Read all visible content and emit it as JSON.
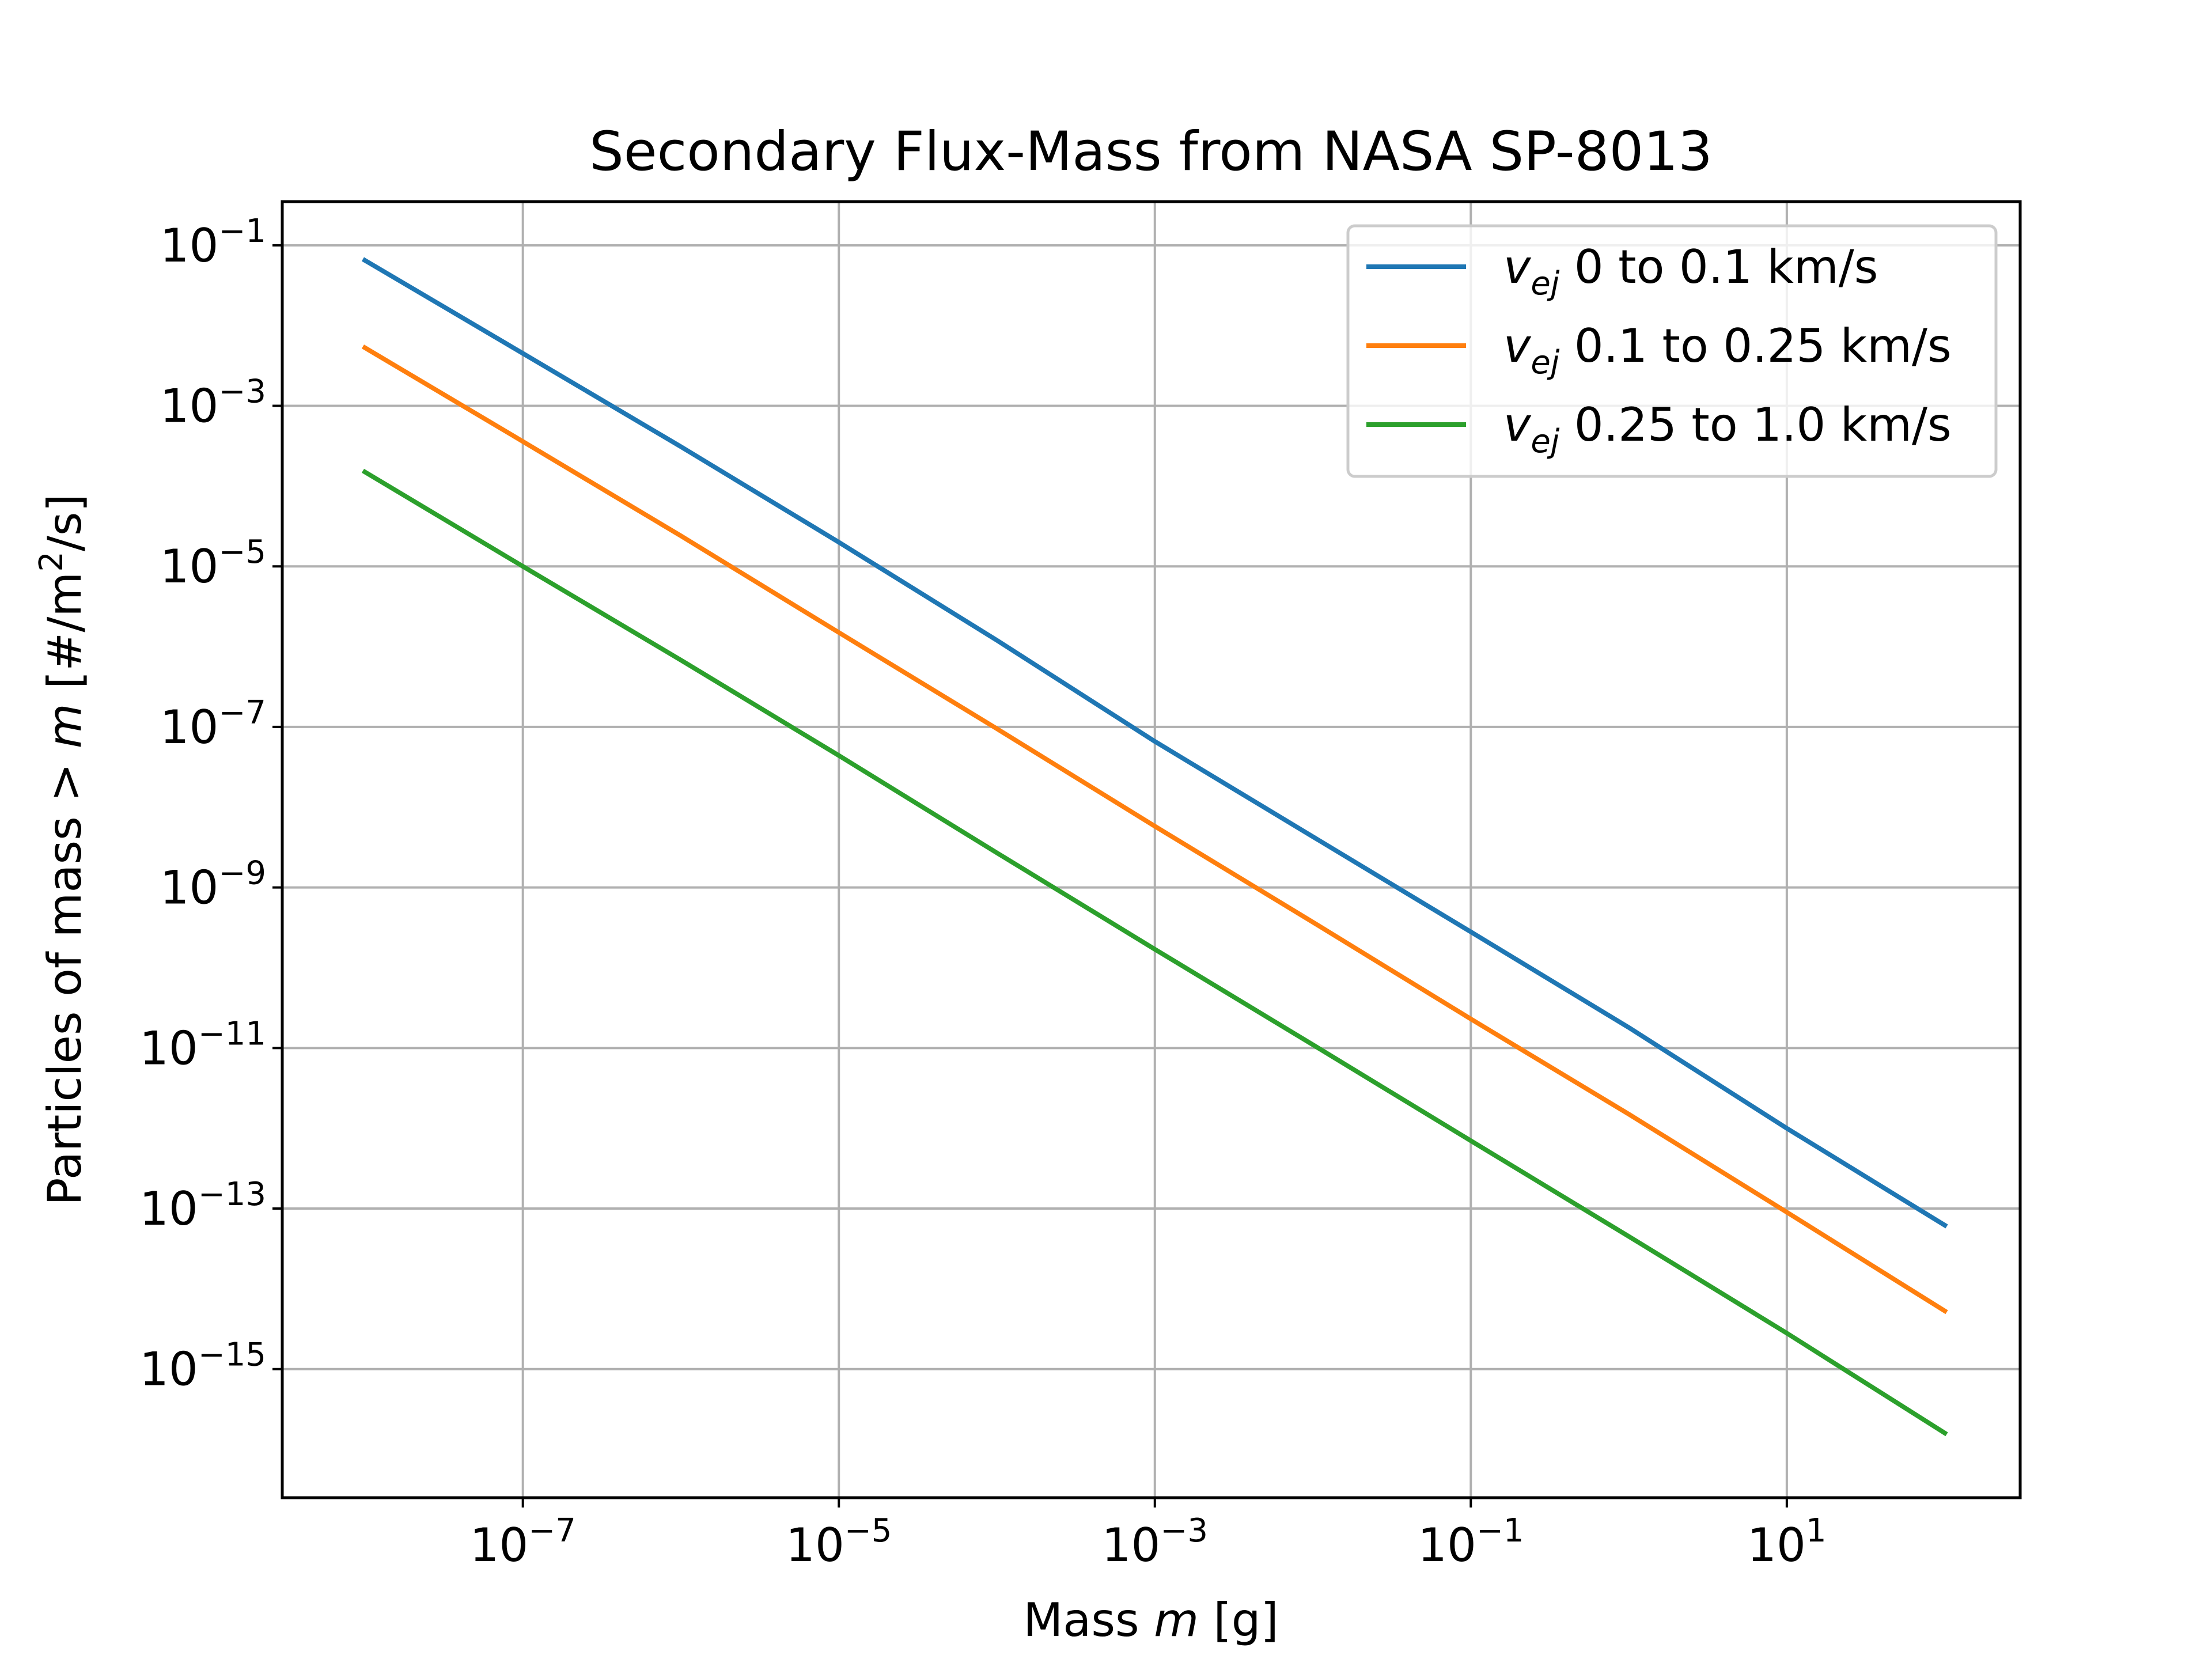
{
  "chart_data": {
    "type": "line",
    "title": "Secondary Flux-Mass from NASA SP-8013",
    "xlabel": {
      "prefix": "Mass ",
      "var": "m",
      "suffix": " [g]"
    },
    "ylabel": {
      "prefix": "Particles of mass > ",
      "var": "m",
      "suffix1": " [#/m",
      "sup": "2",
      "suffix2": "/s]"
    },
    "xscale": "log",
    "yscale": "log",
    "xlim": [
      3e-09,
      300
    ],
    "ylim": [
      2.5e-17,
      0.35
    ],
    "grid": true,
    "legend_position": "top-right",
    "x_ticks": [
      {
        "base": "10",
        "exp": "−7",
        "value": 1e-07
      },
      {
        "base": "10",
        "exp": "−5",
        "value": 1e-05
      },
      {
        "base": "10",
        "exp": "−3",
        "value": 0.001
      },
      {
        "base": "10",
        "exp": "−1",
        "value": 0.1
      },
      {
        "base": "10",
        "exp": "1",
        "value": 10
      }
    ],
    "y_ticks": [
      {
        "base": "10",
        "exp": "−1",
        "value": 0.1
      },
      {
        "base": "10",
        "exp": "−3",
        "value": 0.001
      },
      {
        "base": "10",
        "exp": "−5",
        "value": 1e-05
      },
      {
        "base": "10",
        "exp": "−7",
        "value": 1e-07
      },
      {
        "base": "10",
        "exp": "−9",
        "value": 1e-09
      },
      {
        "base": "10",
        "exp": "−11",
        "value": 1e-11
      },
      {
        "base": "10",
        "exp": "−13",
        "value": 1e-13
      },
      {
        "base": "10",
        "exp": "−15",
        "value": 1e-15
      }
    ],
    "x": [
      1e-08,
      1e-07,
      1e-06,
      1e-05,
      0.0001,
      0.001,
      0.01,
      0.1,
      1,
      10,
      100
    ],
    "series": [
      {
        "name": "0 to 0.1 km/s",
        "label_var": "v",
        "label_sub": "ej",
        "label_text": " 0 to 0.1 km/s",
        "color": "#1f77b4",
        "values": [
          0.065,
          0.0045,
          0.00031,
          2e-05,
          1.2e-06,
          6.6e-08,
          4.3e-09,
          2.8e-10,
          1.8e-11,
          1e-12,
          6.2e-14
        ]
      },
      {
        "name": "0.1 to 0.25 km/s",
        "label_var": "v",
        "label_sub": "ej",
        "label_text": " 0.1 to 0.25 km/s",
        "color": "#ff7f0e",
        "values": [
          0.0053,
          0.00036,
          2.4e-05,
          1.5e-06,
          9.5e-08,
          5.8e-09,
          3.7e-10,
          2.3e-11,
          1.5e-12,
          9e-14,
          5.3e-15
        ]
      },
      {
        "name": "0.25 to 1.0 km/s",
        "label_var": "v",
        "label_sub": "ej",
        "label_text": " 0.25 to 1.0 km/s",
        "color": "#2ca02c",
        "values": [
          0.00015,
          1e-05,
          6.8e-07,
          4.4e-08,
          2.7e-09,
          1.7e-10,
          1.1e-11,
          7e-13,
          4.5e-14,
          2.8e-15,
          1.6e-16
        ]
      }
    ]
  }
}
